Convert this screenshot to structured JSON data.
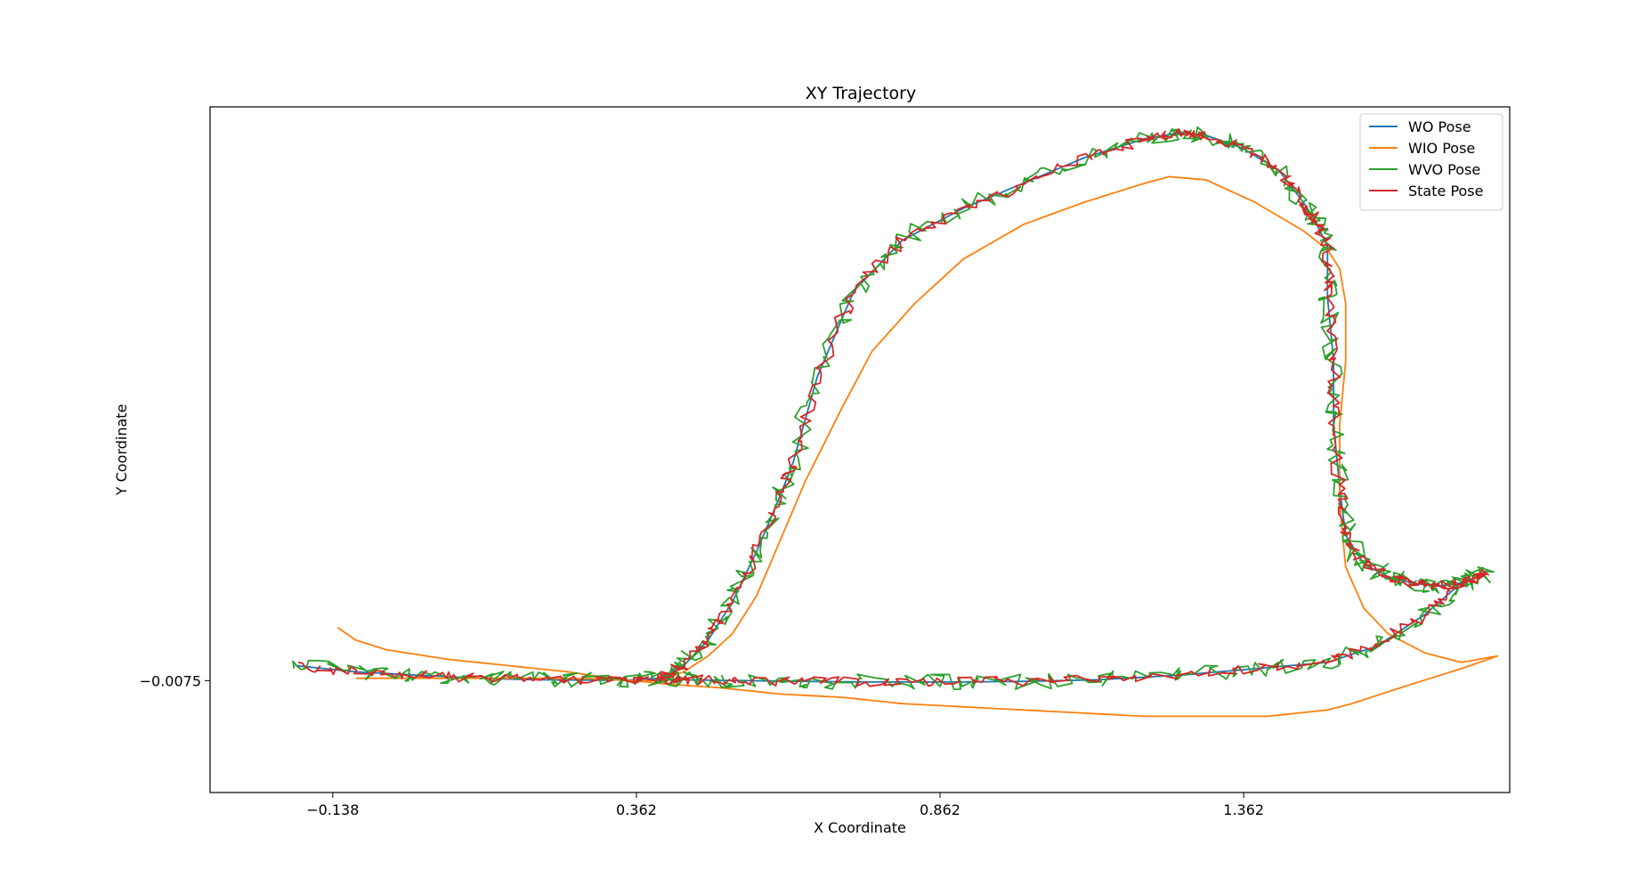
{
  "chart_data": {
    "type": "line",
    "title": "XY Trajectory",
    "xlabel": "X Coordinate",
    "ylabel": "Y Coordinate",
    "xlim": [
      -0.34,
      1.8
    ],
    "ylim": [
      -0.36,
      1.8
    ],
    "xticks": [
      -0.138,
      0.362,
      0.862,
      1.362
    ],
    "xtick_labels": [
      "−0.138",
      "0.362",
      "0.862",
      "1.362"
    ],
    "yticks": [
      -0.0075
    ],
    "ytick_labels": [
      "−0.0075"
    ],
    "grid": false,
    "legend_position": "top-right",
    "series": [
      {
        "name": "WO Pose",
        "color": "#1f77b4",
        "noise": 0,
        "x": [
          -0.2,
          -0.1,
          0.0,
          0.1,
          0.2,
          0.3,
          0.36,
          0.4,
          0.44,
          0.48,
          0.52,
          0.56,
          0.6,
          0.62,
          0.66,
          0.72,
          0.8,
          0.9,
          1.0,
          1.1,
          1.2,
          1.26,
          1.3,
          1.36,
          1.42,
          1.46,
          1.48,
          1.5,
          1.5,
          1.51,
          1.51,
          1.52,
          1.53,
          1.56,
          1.6,
          1.64,
          1.68,
          1.72,
          1.76,
          1.72,
          1.66,
          1.58,
          1.5,
          1.38,
          1.26,
          1.12,
          1.0,
          0.88,
          0.76,
          0.64,
          0.52,
          0.44,
          0.4
        ],
        "y": [
          0.04,
          0.02,
          0.01,
          0.0,
          -0.005,
          -0.006,
          -0.005,
          0.0,
          0.04,
          0.12,
          0.24,
          0.4,
          0.58,
          0.68,
          0.95,
          1.22,
          1.38,
          1.48,
          1.56,
          1.64,
          1.7,
          1.72,
          1.71,
          1.67,
          1.6,
          1.5,
          1.44,
          1.36,
          1.2,
          1.0,
          0.8,
          0.6,
          0.45,
          0.36,
          0.32,
          0.3,
          0.29,
          0.3,
          0.33,
          0.3,
          0.2,
          0.1,
          0.05,
          0.03,
          0.01,
          -0.005,
          -0.01,
          -0.012,
          -0.012,
          -0.01,
          -0.007,
          -0.005,
          -0.004
        ]
      },
      {
        "name": "WIO Pose",
        "color": "#ff7f0e",
        "noise": 0,
        "x": [
          -0.13,
          -0.1,
          -0.05,
          0.05,
          0.15,
          0.25,
          0.32,
          0.37,
          0.4,
          0.44,
          0.48,
          0.52,
          0.56,
          0.6,
          0.64,
          0.7,
          0.75,
          0.82,
          0.9,
          1.0,
          1.1,
          1.2,
          1.24,
          1.3,
          1.38,
          1.46,
          1.5,
          1.52,
          1.53,
          1.53,
          1.52,
          1.52,
          1.53,
          1.56,
          1.6,
          1.66,
          1.72,
          1.78,
          1.72,
          1.62,
          1.54,
          1.5,
          1.4,
          1.3,
          1.2,
          1.1,
          1.0,
          0.9,
          0.8,
          0.7,
          0.6,
          0.5,
          0.42,
          0.37,
          0.3,
          0.2,
          0.1,
          0.0,
          -0.1
        ],
        "y": [
          0.16,
          0.12,
          0.09,
          0.06,
          0.04,
          0.02,
          0.0,
          -0.01,
          -0.005,
          0.02,
          0.07,
          0.14,
          0.26,
          0.44,
          0.62,
          0.85,
          1.03,
          1.18,
          1.32,
          1.43,
          1.5,
          1.56,
          1.58,
          1.57,
          1.5,
          1.41,
          1.35,
          1.29,
          1.18,
          1.0,
          0.8,
          0.55,
          0.35,
          0.22,
          0.14,
          0.08,
          0.05,
          0.07,
          0.03,
          -0.03,
          -0.08,
          -0.1,
          -0.12,
          -0.12,
          -0.12,
          -0.11,
          -0.1,
          -0.09,
          -0.08,
          -0.06,
          -0.05,
          -0.03,
          -0.02,
          -0.01,
          -0.002,
          0.0,
          0.0,
          0.0,
          0.0
        ]
      },
      {
        "name": "WVO Pose",
        "color": "#2ca02c",
        "noise": 0.035,
        "x": [
          -0.2,
          -0.1,
          0.0,
          0.1,
          0.2,
          0.3,
          0.36,
          0.4,
          0.44,
          0.48,
          0.52,
          0.56,
          0.6,
          0.62,
          0.66,
          0.72,
          0.8,
          0.9,
          1.0,
          1.1,
          1.2,
          1.26,
          1.3,
          1.36,
          1.42,
          1.46,
          1.48,
          1.5,
          1.5,
          1.51,
          1.51,
          1.52,
          1.53,
          1.56,
          1.6,
          1.64,
          1.68,
          1.72,
          1.76,
          1.72,
          1.66,
          1.58,
          1.5,
          1.38,
          1.26,
          1.12,
          1.0,
          0.88,
          0.76,
          0.64,
          0.52,
          0.44,
          0.4
        ],
        "y": [
          0.04,
          0.02,
          0.01,
          0.0,
          -0.005,
          -0.006,
          -0.005,
          0.0,
          0.04,
          0.12,
          0.24,
          0.4,
          0.58,
          0.68,
          0.95,
          1.22,
          1.38,
          1.48,
          1.56,
          1.64,
          1.7,
          1.72,
          1.71,
          1.67,
          1.6,
          1.5,
          1.44,
          1.36,
          1.2,
          1.0,
          0.8,
          0.6,
          0.45,
          0.36,
          0.32,
          0.3,
          0.29,
          0.3,
          0.33,
          0.3,
          0.2,
          0.1,
          0.05,
          0.03,
          0.01,
          -0.005,
          -0.01,
          -0.012,
          -0.012,
          -0.01,
          -0.007,
          -0.005,
          -0.004
        ]
      },
      {
        "name": "State Pose",
        "color": "#d62728",
        "noise": 0.022,
        "x": [
          -0.2,
          -0.1,
          0.0,
          0.1,
          0.2,
          0.3,
          0.36,
          0.4,
          0.44,
          0.48,
          0.52,
          0.56,
          0.6,
          0.62,
          0.66,
          0.72,
          0.8,
          0.9,
          1.0,
          1.1,
          1.2,
          1.26,
          1.3,
          1.36,
          1.42,
          1.46,
          1.48,
          1.5,
          1.5,
          1.51,
          1.51,
          1.52,
          1.53,
          1.56,
          1.6,
          1.64,
          1.68,
          1.72,
          1.76,
          1.72,
          1.66,
          1.58,
          1.5,
          1.38,
          1.26,
          1.12,
          1.0,
          0.88,
          0.76,
          0.64,
          0.52,
          0.44,
          0.4
        ],
        "y": [
          0.04,
          0.02,
          0.01,
          0.0,
          -0.005,
          -0.006,
          -0.005,
          0.0,
          0.04,
          0.12,
          0.24,
          0.4,
          0.58,
          0.68,
          0.95,
          1.22,
          1.38,
          1.48,
          1.56,
          1.64,
          1.7,
          1.72,
          1.71,
          1.67,
          1.6,
          1.5,
          1.44,
          1.36,
          1.2,
          1.0,
          0.8,
          0.6,
          0.45,
          0.36,
          0.32,
          0.3,
          0.29,
          0.3,
          0.33,
          0.3,
          0.2,
          0.1,
          0.05,
          0.03,
          0.01,
          -0.005,
          -0.01,
          -0.012,
          -0.012,
          -0.01,
          -0.007,
          -0.005,
          -0.004
        ]
      }
    ]
  }
}
